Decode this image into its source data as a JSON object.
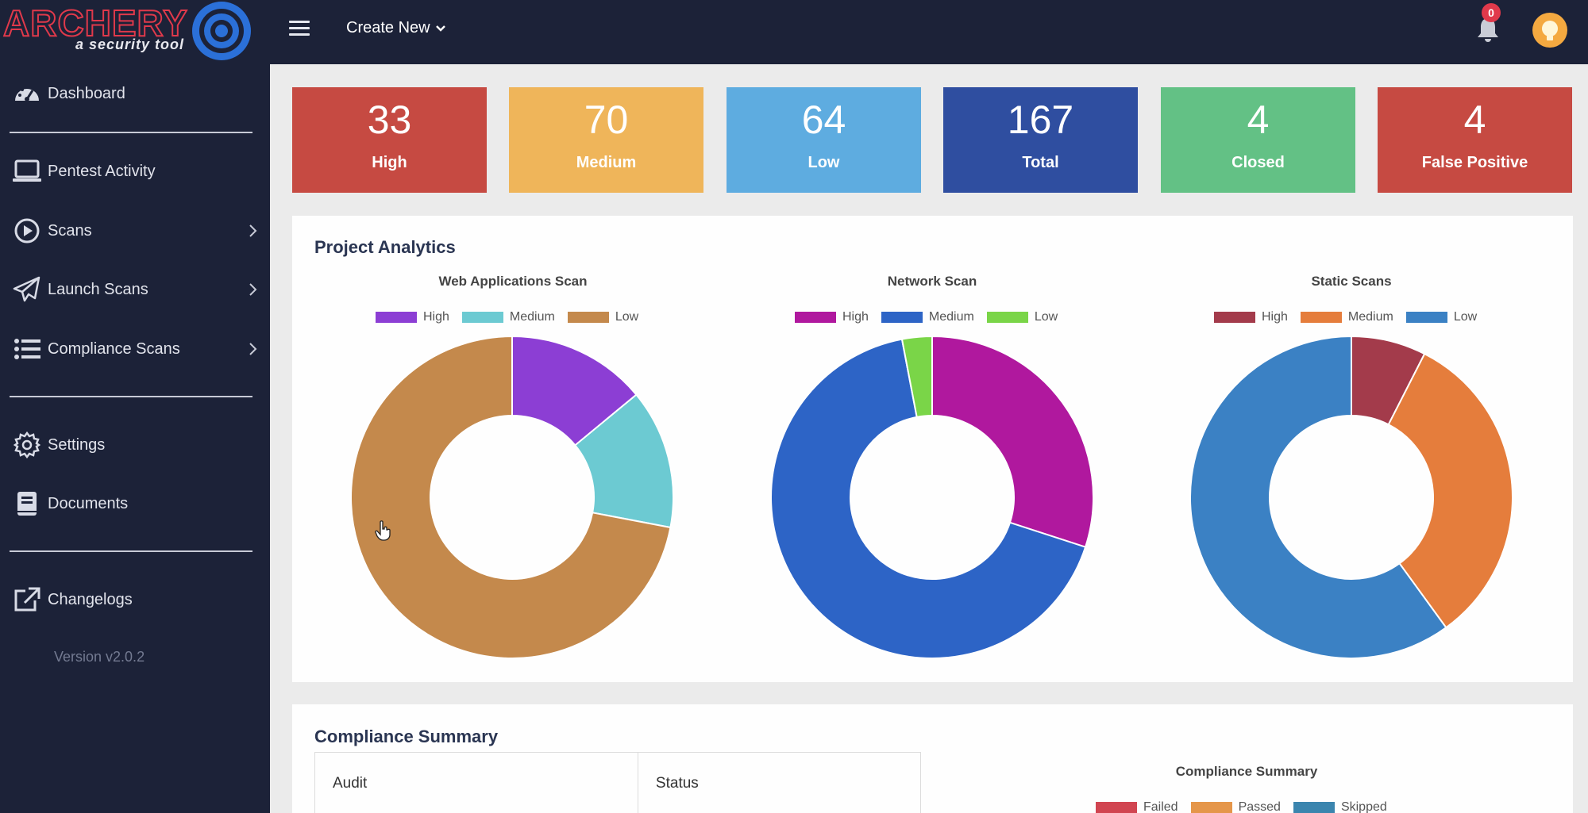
{
  "brand": {
    "logo_text": "ARCHERY",
    "tagline": "a security tool"
  },
  "sidebar": {
    "items": [
      {
        "label": "Dashboard",
        "icon": "gauge-icon"
      },
      {
        "label": "Pentest Activity",
        "icon": "laptop-icon"
      },
      {
        "label": "Scans",
        "icon": "play-circle-icon",
        "has_submenu": true
      },
      {
        "label": "Launch Scans",
        "icon": "paper-plane-icon",
        "has_submenu": true
      },
      {
        "label": "Compliance Scans",
        "icon": "list-icon",
        "has_submenu": true
      },
      {
        "label": "Settings",
        "icon": "gear-icon"
      },
      {
        "label": "Documents",
        "icon": "book-icon"
      },
      {
        "label": "Changelogs",
        "icon": "external-link-icon"
      }
    ],
    "version": "Version v2.0.2"
  },
  "topbar": {
    "create_new": "Create New",
    "notification_count": "0"
  },
  "stats": [
    {
      "value": "33",
      "label": "High",
      "color": "#c64a42"
    },
    {
      "value": "70",
      "label": "Medium",
      "color": "#efb55a"
    },
    {
      "value": "64",
      "label": "Low",
      "color": "#5eace0"
    },
    {
      "value": "167",
      "label": "Total",
      "color": "#2f4ea0"
    },
    {
      "value": "4",
      "label": "Closed",
      "color": "#63c185"
    },
    {
      "value": "4",
      "label": "False Positive",
      "color": "#c64a42"
    }
  ],
  "analytics": {
    "title": "Project Analytics"
  },
  "chart_data": [
    {
      "type": "pie",
      "title": "Web Applications Scan",
      "categories": [
        "High",
        "Medium",
        "Low"
      ],
      "values": [
        14,
        14,
        72
      ],
      "colors": [
        "#8c3ed4",
        "#6ccad2",
        "#c4894c"
      ],
      "legend": "top"
    },
    {
      "type": "pie",
      "title": "Network Scan",
      "categories": [
        "High",
        "Medium",
        "Low"
      ],
      "values": [
        30,
        67,
        3
      ],
      "colors": [
        "#b0189e",
        "#2d64c6",
        "#7ad548"
      ],
      "legend": "top"
    },
    {
      "type": "pie",
      "title": "Static Scans",
      "categories": [
        "High",
        "Medium",
        "Low"
      ],
      "values": [
        7.5,
        32.5,
        60
      ],
      "colors": [
        "#a33b4b",
        "#e57d3c",
        "#3b81c4"
      ],
      "legend": "top"
    },
    {
      "type": "pie",
      "title": "Compliance Summary",
      "categories": [
        "Failed",
        "Passed",
        "Skipped"
      ],
      "colors": [
        "#d14551",
        "#e5964a",
        "#3b85ae"
      ],
      "legend": "top"
    }
  ],
  "compliance": {
    "title": "Compliance Summary",
    "columns": [
      "Audit",
      "Status"
    ]
  }
}
